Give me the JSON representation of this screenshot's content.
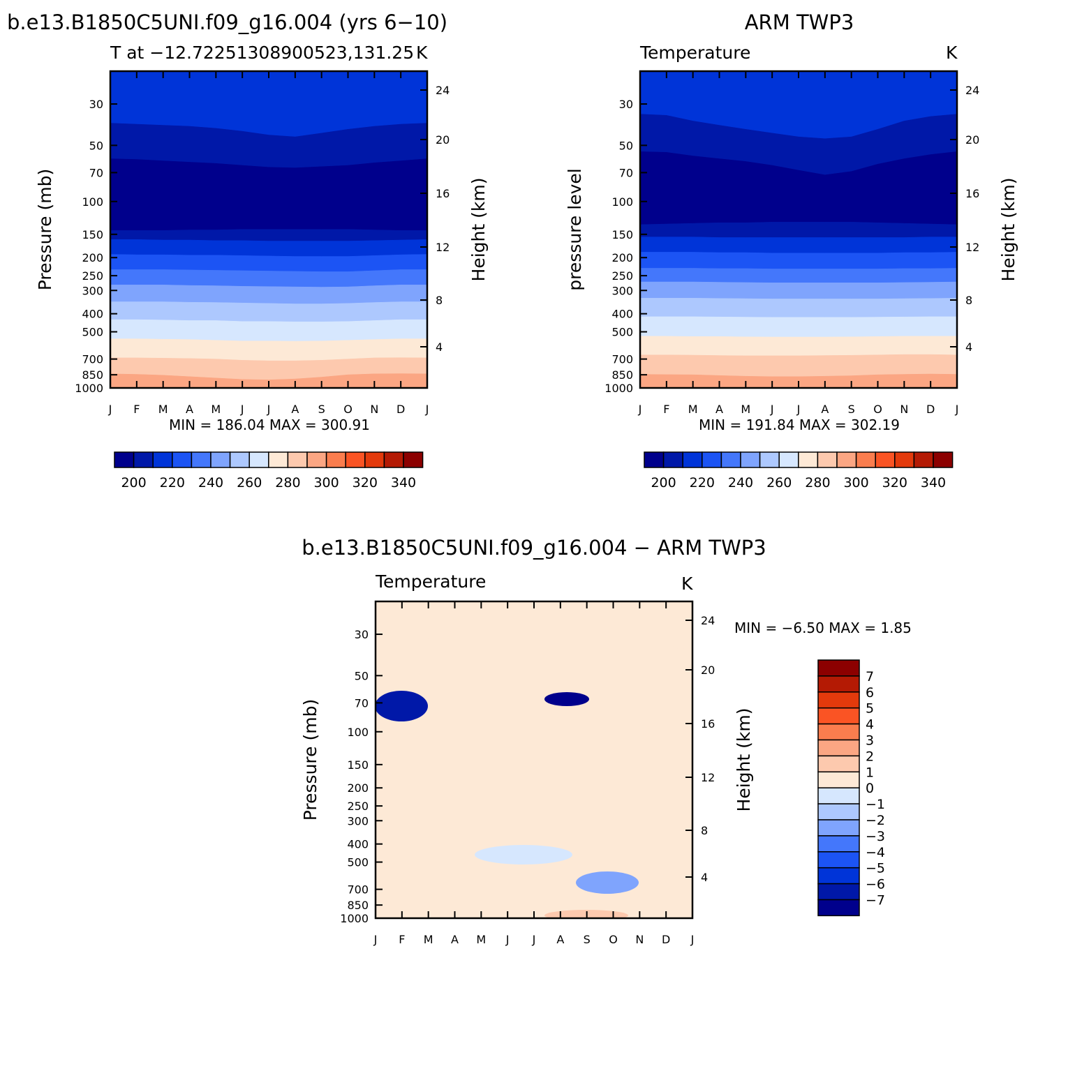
{
  "colors": {
    "temperature_palette": [
      "#00008c",
      "#0018a8",
      "#0034d8",
      "#1c54f4",
      "#4477fb",
      "#7fa4fd",
      "#adc8fe",
      "#d6e7fe",
      "#fde9d6",
      "#fdc9ae",
      "#fba683",
      "#fa7d4e",
      "#fa5424",
      "#e33a0c",
      "#b41a04",
      "#8c0000"
    ],
    "difference_palette": [
      "#00008c",
      "#0018a8",
      "#0034d8",
      "#1c54f4",
      "#4477fb",
      "#7fa4fd",
      "#adc8fe",
      "#d6e7fe",
      "#fde9d6",
      "#fdc9ae",
      "#fba683",
      "#fa7d4e",
      "#fa5424",
      "#e33a0c",
      "#b41a04",
      "#8c0000"
    ]
  },
  "month_ticks": [
    "J",
    "F",
    "M",
    "A",
    "M",
    "J",
    "J",
    "A",
    "S",
    "O",
    "N",
    "D",
    "J"
  ],
  "pressure_ticks": [
    "30",
    "50",
    "70",
    "100",
    "150",
    "200",
    "250",
    "300",
    "400",
    "500",
    "700",
    "850",
    "1000"
  ],
  "height_ticks": [
    "24",
    "20",
    "16",
    "12",
    "8",
    "4"
  ],
  "chart_data": [
    {
      "type": "heatmap",
      "title": "b.e13.B1850C5UNI.f09_g16.004 (yrs 6−10)",
      "left_label": "T at −12.72251308900523,131.25",
      "right_label": "K",
      "ylabel": "Pressure (mb)",
      "ylabel_right": "Height (km)",
      "minmax": "MIN = 186.04 MAX = 300.91",
      "colorbar_labels": [
        "200",
        "220",
        "240",
        "260",
        "280",
        "300",
        "320",
        "340"
      ],
      "x": [
        "Jan",
        "Feb",
        "Mar",
        "Apr",
        "May",
        "Jun",
        "Jul",
        "Aug",
        "Sep",
        "Oct",
        "Nov",
        "Dec",
        "Jan"
      ],
      "ylim": [
        1000,
        20
      ],
      "layers": [
        {
          "color_index": 0,
          "top_hpa": [
            59,
            59.5,
            60.5,
            61.5,
            62.5,
            64,
            65.5,
            66,
            65,
            64,
            62,
            60.5,
            59
          ]
        },
        {
          "color_index": 1,
          "top_hpa": [
            38,
            38.5,
            39,
            39.5,
            40.5,
            42,
            44,
            45,
            43,
            41,
            39.5,
            38.5,
            38
          ]
        },
        {
          "color_index": 2,
          "top_hpa": [
            20,
            20,
            20,
            20,
            20,
            20,
            20,
            20,
            20,
            20,
            20,
            20,
            20
          ]
        }
      ]
    },
    {
      "type": "heatmap",
      "title": "ARM TWP3",
      "left_label": "Temperature",
      "right_label": "K",
      "ylabel": "pressure level",
      "ylabel_right": "Height (km)",
      "minmax": "MIN = 191.84 MAX = 302.19",
      "colorbar_labels": [
        "200",
        "220",
        "240",
        "260",
        "280",
        "300",
        "320",
        "340"
      ],
      "x": [
        "Jan",
        "Feb",
        "Mar",
        "Apr",
        "May",
        "Jun",
        "Jul",
        "Aug",
        "Sep",
        "Oct",
        "Nov",
        "Dec",
        "Jan"
      ],
      "ylim": [
        1000,
        20
      ]
    },
    {
      "type": "heatmap",
      "title": "b.e13.B1850C5UNI.f09_g16.004 − ARM TWP3",
      "left_label": "Temperature",
      "right_label": "K",
      "ylabel": "Pressure (mb)",
      "ylabel_right": "Height (km)",
      "minmax": "MIN =   −6.50 MAX =    1.85",
      "colorbar_labels": [
        "7",
        "6",
        "5",
        "4",
        "3",
        "2",
        "1",
        "0",
        "−1",
        "−2",
        "−3",
        "−4",
        "−5",
        "−6",
        "−7"
      ],
      "x": [
        "Jan",
        "Feb",
        "Mar",
        "Apr",
        "May",
        "Jun",
        "Jul",
        "Aug",
        "Sep",
        "Oct",
        "Nov",
        "Dec",
        "Jan"
      ],
      "ylim": [
        1000,
        20
      ]
    }
  ]
}
